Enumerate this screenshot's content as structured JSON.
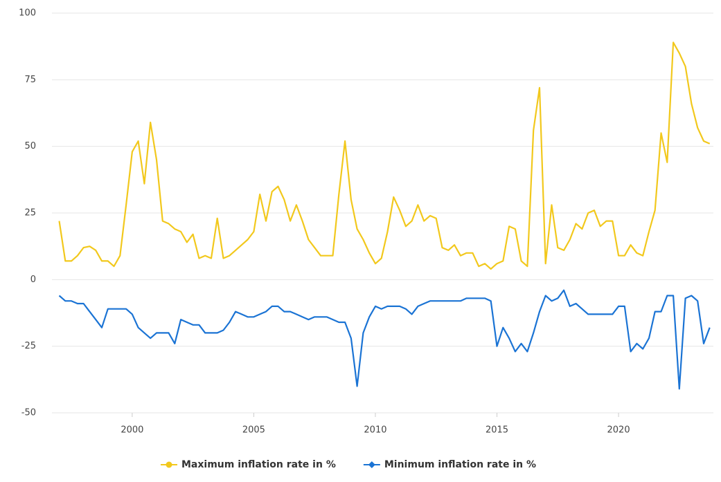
{
  "chart_data": {
    "type": "line",
    "x": [
      1997,
      1997.25,
      1997.5,
      1997.75,
      1998,
      1998.25,
      1998.5,
      1998.75,
      1999,
      1999.25,
      1999.5,
      1999.75,
      2000,
      2000.25,
      2000.5,
      2000.75,
      2001,
      2001.25,
      2001.5,
      2001.75,
      2002,
      2002.25,
      2002.5,
      2002.75,
      2003,
      2003.25,
      2003.5,
      2003.75,
      2004,
      2004.25,
      2004.5,
      2004.75,
      2005,
      2005.25,
      2005.5,
      2005.75,
      2006,
      2006.25,
      2006.5,
      2006.75,
      2007,
      2007.25,
      2007.5,
      2007.75,
      2008,
      2008.25,
      2008.5,
      2008.75,
      2009,
      2009.25,
      2009.5,
      2009.75,
      2010,
      2010.25,
      2010.5,
      2010.75,
      2011,
      2011.25,
      2011.5,
      2011.75,
      2012,
      2012.25,
      2012.5,
      2012.75,
      2013,
      2013.25,
      2013.5,
      2013.75,
      2014,
      2014.25,
      2014.5,
      2014.75,
      2015,
      2015.25,
      2015.5,
      2015.75,
      2016,
      2016.25,
      2016.5,
      2016.75,
      2017,
      2017.25,
      2017.5,
      2017.75,
      2018,
      2018.25,
      2018.5,
      2018.75,
      2019,
      2019.25,
      2019.5,
      2019.75,
      2020,
      2020.25,
      2020.5,
      2020.75,
      2021,
      2021.25,
      2021.5,
      2021.75,
      2022,
      2022.25,
      2022.5,
      2022.75,
      2023,
      2023.25,
      2023.5,
      2023.75
    ],
    "series": [
      {
        "name": "Maximum inflation rate in %",
        "color": "#f2c81c",
        "marker": "circle",
        "values": [
          22,
          7,
          7,
          9,
          12,
          12.5,
          11,
          7,
          7,
          5,
          9,
          28,
          48,
          52,
          36,
          59,
          45,
          22,
          21,
          19,
          18,
          14,
          17,
          8,
          9,
          8,
          23,
          8,
          9,
          11,
          13,
          15,
          18,
          32,
          22,
          33,
          35,
          30,
          22,
          28,
          22,
          15,
          12,
          9,
          9,
          9,
          32,
          52,
          30,
          19,
          15,
          10,
          6,
          8,
          18,
          31,
          26,
          20,
          22,
          28,
          22,
          24,
          23,
          12,
          11,
          13,
          9,
          10,
          10,
          5,
          6,
          4,
          6,
          7,
          20,
          19,
          7,
          5,
          56,
          72,
          6,
          28,
          12,
          11,
          15,
          21,
          19,
          25,
          26,
          20,
          22,
          22,
          9,
          9,
          13,
          10,
          9,
          18,
          26,
          55,
          44,
          89,
          85,
          80,
          66,
          57,
          52,
          51
        ]
      },
      {
        "name": "Minimum inflation rate in %",
        "color": "#1a73d4",
        "marker": "diamond",
        "values": [
          -6,
          -8,
          -8,
          -9,
          -9,
          -12,
          -15,
          -18,
          -11,
          -11,
          -11,
          -11,
          -13,
          -18,
          -20,
          -22,
          -20,
          -20,
          -20,
          -24,
          -15,
          -16,
          -17,
          -17,
          -20,
          -20,
          -20,
          -19,
          -16,
          -12,
          -13,
          -14,
          -14,
          -13,
          -12,
          -10,
          -10,
          -12,
          -12,
          -13,
          -14,
          -15,
          -14,
          -14,
          -14,
          -15,
          -16,
          -16,
          -22,
          -40,
          -20,
          -14,
          -10,
          -11,
          -10,
          -10,
          -10,
          -11,
          -13,
          -10,
          -9,
          -8,
          -8,
          -8,
          -8,
          -8,
          -8,
          -7,
          -7,
          -7,
          -7,
          -8,
          -25,
          -18,
          -22,
          -27,
          -24,
          -27,
          -20,
          -12,
          -6,
          -8,
          -7,
          -4,
          -10,
          -9,
          -11,
          -13,
          -13,
          -13,
          -13,
          -13,
          -10,
          -10,
          -27,
          -24,
          -26,
          -22,
          -12,
          -12,
          -6,
          -6,
          -41,
          -7,
          -6,
          -8,
          -24,
          -18
        ]
      }
    ],
    "xlim": [
      1996.7,
      2023.9
    ],
    "xticks": [
      2000,
      2005,
      2010,
      2015,
      2020
    ],
    "ylim": [
      -50,
      100
    ],
    "yticks": [
      -50,
      -25,
      0,
      25,
      50,
      75,
      100
    ],
    "grid": true,
    "legend": "bottom"
  }
}
